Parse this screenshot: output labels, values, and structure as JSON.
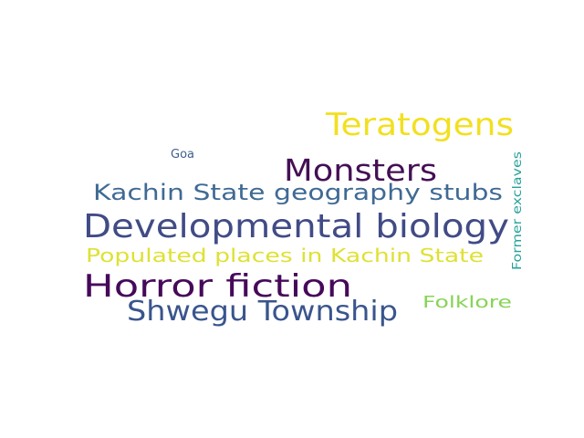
{
  "words": [
    {
      "text": "Teratogens",
      "color": "#f2e01f"
    },
    {
      "text": "Goa",
      "color": "#3e5f8f"
    },
    {
      "text": "Monsters",
      "color": "#440f55"
    },
    {
      "text": "Former exclaves",
      "color": "#27a19a"
    },
    {
      "text": "Kachin State geography stubs",
      "color": "#3f6a94"
    },
    {
      "text": "Developmental biology",
      "color": "#414b86"
    },
    {
      "text": "Populated places in Kachin State",
      "color": "#dfe134"
    },
    {
      "text": "Horror fiction",
      "color": "#46095a"
    },
    {
      "text": "Folklore",
      "color": "#86d456"
    },
    {
      "text": "Shwegu Township",
      "color": "#3a558d"
    }
  ]
}
